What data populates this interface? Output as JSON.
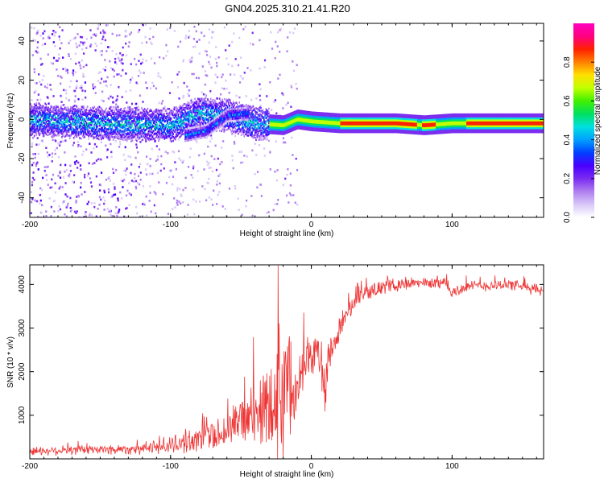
{
  "title": "GN04.2025.310.21.41.R20",
  "chart_data": [
    {
      "type": "heatmap",
      "xlabel": "Height of straight line (km)",
      "ylabel": "Frequency (Hz)",
      "xlim": [
        -200,
        165
      ],
      "ylim": [
        -50,
        49
      ],
      "xticks": [
        -200,
        -100,
        0,
        100
      ],
      "yticks": [
        -40,
        -20,
        0,
        20,
        40
      ],
      "colorbar": {
        "label": "Normalized spectral amplitude",
        "range": [
          0,
          1
        ],
        "ticks": [
          "0.0",
          "0.2",
          "0.4",
          "0.6",
          "0.8"
        ],
        "colors": [
          "#ffffff",
          "#d8c8f8",
          "#b07ff0",
          "#7a2cf0",
          "#4a00ff",
          "#0040ff",
          "#00a0ff",
          "#00e0e0",
          "#00e060",
          "#40f000",
          "#c0ff00",
          "#ffe000",
          "#ff8000",
          "#ff2000",
          "#ff0080",
          "#ff00c0"
        ]
      },
      "ridge": [
        {
          "x": -200,
          "f": 0
        },
        {
          "x": -150,
          "f": -2
        },
        {
          "x": -100,
          "f": -3
        },
        {
          "x": -80,
          "f": 3
        },
        {
          "x": -60,
          "f": 2
        },
        {
          "x": -40,
          "f": -2
        },
        {
          "x": -20,
          "f": -3
        },
        {
          "x": -10,
          "f": 0
        },
        {
          "x": 0,
          "f": -1
        },
        {
          "x": 20,
          "f": -2
        },
        {
          "x": 60,
          "f": -2
        },
        {
          "x": 80,
          "f": -3
        },
        {
          "x": 100,
          "f": -2
        },
        {
          "x": 165,
          "f": -2
        }
      ],
      "branch": [
        {
          "x": -90,
          "f": -8
        },
        {
          "x": -75,
          "f": -6
        },
        {
          "x": -60,
          "f": 2
        },
        {
          "x": -45,
          "f": 3
        }
      ],
      "noise_region_x": [
        -200,
        -30
      ]
    },
    {
      "type": "line",
      "xlabel": "Height of straight line (km)",
      "ylabel": "SNR (10 * v/v)",
      "xlim": [
        -200,
        165
      ],
      "ylim": [
        0,
        4450
      ],
      "xticks": [
        -200,
        -100,
        0,
        100
      ],
      "yticks": [
        1000,
        2000,
        3000,
        4000
      ],
      "color": "#ee3333",
      "envelope": [
        {
          "x": -200,
          "base": 180,
          "noise": 120
        },
        {
          "x": -120,
          "base": 230,
          "noise": 150
        },
        {
          "x": -100,
          "base": 320,
          "noise": 250
        },
        {
          "x": -80,
          "base": 450,
          "noise": 350
        },
        {
          "x": -60,
          "base": 650,
          "noise": 500
        },
        {
          "x": -40,
          "base": 1000,
          "noise": 900
        },
        {
          "x": -25,
          "base": 1500,
          "noise": 1500
        },
        {
          "x": -20,
          "base": 1700,
          "noise": 2500
        },
        {
          "x": -15,
          "base": 1500,
          "noise": 1200
        },
        {
          "x": -5,
          "base": 2300,
          "noise": 700
        },
        {
          "x": 5,
          "base": 2400,
          "noise": 600
        },
        {
          "x": 10,
          "base": 1700,
          "noise": 900
        },
        {
          "x": 15,
          "base": 2500,
          "noise": 400
        },
        {
          "x": 25,
          "base": 3400,
          "noise": 250
        },
        {
          "x": 40,
          "base": 3850,
          "noise": 200
        },
        {
          "x": 60,
          "base": 4000,
          "noise": 180
        },
        {
          "x": 95,
          "base": 4050,
          "noise": 160
        },
        {
          "x": 100,
          "base": 3800,
          "noise": 200
        },
        {
          "x": 110,
          "base": 3950,
          "noise": 150
        },
        {
          "x": 140,
          "base": 4000,
          "noise": 150
        },
        {
          "x": 165,
          "base": 3850,
          "noise": 150
        }
      ]
    }
  ]
}
